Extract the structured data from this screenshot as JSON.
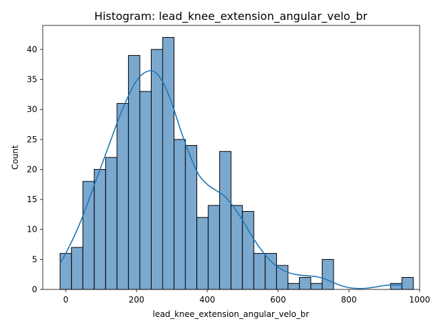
{
  "chart_data": {
    "type": "bar",
    "title": "Histogram: lead_knee_extension_angular_velo_br",
    "xlabel": "lead_knee_extension_angular_velo_br",
    "ylabel": "Count",
    "xlim": [
      -65,
      1000
    ],
    "ylim": [
      0,
      44
    ],
    "xticks": [
      0,
      200,
      400,
      600,
      800,
      1000
    ],
    "yticks": [
      0,
      5,
      10,
      15,
      20,
      25,
      30,
      35,
      40
    ],
    "grid": false,
    "bar_fill": "#7ba8cf",
    "bar_edge": "#000000",
    "kde_color": "#1f77b4",
    "bins": {
      "start": -16,
      "width": 32.2,
      "counts": [
        6,
        7,
        18,
        20,
        22,
        31,
        39,
        33,
        40,
        42,
        25,
        24,
        12,
        14,
        23,
        14,
        13,
        6,
        6,
        4,
        1,
        2,
        1,
        5,
        0,
        0,
        0,
        0,
        0,
        1,
        2
      ]
    },
    "kde": {
      "x": [
        -16,
        0,
        25,
        50,
        75,
        100,
        125,
        150,
        175,
        200,
        225,
        250,
        275,
        300,
        325,
        350,
        375,
        400,
        425,
        450,
        475,
        500,
        525,
        550,
        575,
        600,
        625,
        650,
        675,
        700,
        725,
        750,
        775,
        800,
        825,
        850,
        875,
        900,
        925,
        952
      ],
      "y": [
        4.3,
        6.0,
        9.0,
        12.5,
        16.5,
        20.5,
        24.5,
        28.5,
        32.0,
        34.8,
        36.2,
        36.3,
        34.5,
        31.0,
        26.5,
        22.5,
        19.2,
        17.5,
        16.5,
        15.5,
        13.7,
        11.5,
        9.0,
        6.8,
        5.0,
        3.7,
        2.9,
        2.5,
        2.3,
        2.2,
        1.9,
        1.3,
        0.7,
        0.3,
        0.15,
        0.2,
        0.4,
        0.65,
        0.75,
        0.7
      ]
    }
  }
}
